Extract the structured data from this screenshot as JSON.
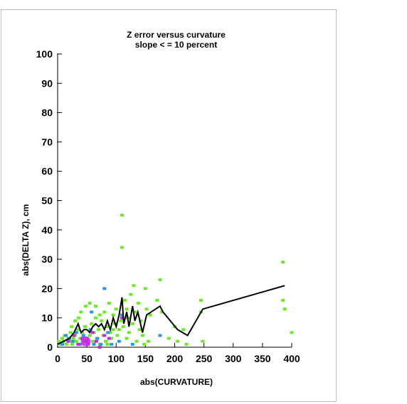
{
  "chart_data": {
    "type": "scatter",
    "title": "Z error versus curvature",
    "subtitle": "slope < = 10 percent",
    "xlabel": "abs(CURVATURE)",
    "ylabel": "abs(DELTA Z), cm",
    "xlim": [
      0,
      400
    ],
    "ylim": [
      0,
      100
    ],
    "x_ticks": [
      0,
      50,
      100,
      150,
      200,
      250,
      300,
      350,
      400
    ],
    "y_ticks": [
      0,
      10,
      20,
      30,
      40,
      50,
      60,
      70,
      80,
      90,
      100
    ],
    "grid": false,
    "point_colors": {
      "low_density": "#66ee22",
      "medium_density": "#2299ee",
      "high_density": "#cc22ee",
      "mean_line": "#000000"
    },
    "series": [
      {
        "name": "",
        "kind": "points",
        "points": [
          [
            2,
            2
          ],
          [
            5,
            1
          ],
          [
            8,
            3
          ],
          [
            10,
            2
          ],
          [
            12,
            4
          ],
          [
            15,
            1
          ],
          [
            18,
            3
          ],
          [
            20,
            2
          ],
          [
            22,
            5
          ],
          [
            25,
            1
          ],
          [
            27,
            3
          ],
          [
            30,
            4
          ],
          [
            32,
            2
          ],
          [
            35,
            6
          ],
          [
            38,
            3
          ],
          [
            40,
            1
          ],
          [
            42,
            5
          ],
          [
            45,
            2
          ],
          [
            47,
            7
          ],
          [
            50,
            3
          ],
          [
            52,
            1
          ],
          [
            55,
            4
          ],
          [
            58,
            8
          ],
          [
            60,
            2
          ],
          [
            62,
            5
          ],
          [
            65,
            10
          ],
          [
            67,
            3
          ],
          [
            70,
            6
          ],
          [
            72,
            1
          ],
          [
            75,
            9
          ],
          [
            78,
            4
          ],
          [
            80,
            12
          ],
          [
            82,
            2
          ],
          [
            85,
            7
          ],
          [
            88,
            15
          ],
          [
            90,
            5
          ],
          [
            92,
            3
          ],
          [
            95,
            11
          ],
          [
            98,
            8
          ],
          [
            100,
            13
          ],
          [
            102,
            4
          ],
          [
            105,
            6
          ],
          [
            108,
            9
          ],
          [
            110,
            45
          ],
          [
            110,
            34
          ],
          [
            112,
            7
          ],
          [
            115,
            16
          ],
          [
            118,
            3
          ],
          [
            120,
            10
          ],
          [
            122,
            5
          ],
          [
            125,
            18
          ],
          [
            128,
            8
          ],
          [
            130,
            21
          ],
          [
            132,
            12
          ],
          [
            135,
            2
          ],
          [
            138,
            15
          ],
          [
            140,
            6
          ],
          [
            142,
            9
          ],
          [
            145,
            4
          ],
          [
            148,
            1
          ],
          [
            150,
            20
          ],
          [
            152,
            13
          ],
          [
            155,
            2
          ],
          [
            158,
            11
          ],
          [
            170,
            16
          ],
          [
            175,
            23
          ],
          [
            178,
            12
          ],
          [
            190,
            3
          ],
          [
            200,
            7
          ],
          [
            205,
            2
          ],
          [
            215,
            6
          ],
          [
            220,
            1
          ],
          [
            245,
            16
          ],
          [
            245,
            12
          ],
          [
            248,
            2
          ],
          [
            385,
            29
          ],
          [
            385,
            16
          ],
          [
            388,
            13
          ],
          [
            400,
            5
          ],
          [
            30,
            9
          ],
          [
            40,
            12
          ],
          [
            55,
            15
          ],
          [
            65,
            14
          ],
          [
            72,
            11
          ],
          [
            85,
            1
          ],
          [
            95,
            6
          ],
          [
            118,
            13
          ],
          [
            24,
            7
          ],
          [
            36,
            10
          ],
          [
            48,
            14
          ]
        ]
      },
      {
        "name": "",
        "kind": "points",
        "points": [
          [
            8,
            1
          ],
          [
            14,
            4
          ],
          [
            20,
            3
          ],
          [
            26,
            2
          ],
          [
            32,
            5
          ],
          [
            38,
            1
          ],
          [
            44,
            4
          ],
          [
            50,
            2
          ],
          [
            56,
            6
          ],
          [
            62,
            1
          ],
          [
            68,
            3
          ],
          [
            74,
            1
          ],
          [
            80,
            20
          ],
          [
            86,
            5
          ],
          [
            92,
            1
          ],
          [
            105,
            2
          ],
          [
            110,
            11
          ],
          [
            128,
            1
          ],
          [
            175,
            4
          ],
          [
            58,
            12
          ]
        ]
      },
      {
        "name": "",
        "kind": "points",
        "points": [
          [
            18,
            2
          ],
          [
            28,
            4
          ],
          [
            35,
            1
          ],
          [
            42,
            3
          ],
          [
            48,
            2
          ],
          [
            52,
            1
          ],
          [
            60,
            5
          ],
          [
            66,
            2
          ],
          [
            80,
            4
          ],
          [
            88,
            3
          ],
          [
            110,
            10
          ],
          [
            72,
            0
          ]
        ]
      },
      {
        "name": "",
        "kind": "line",
        "points": [
          [
            0,
            1
          ],
          [
            10,
            2
          ],
          [
            20,
            3
          ],
          [
            28,
            5
          ],
          [
            35,
            8
          ],
          [
            40,
            5
          ],
          [
            45,
            6
          ],
          [
            50,
            6
          ],
          [
            55,
            5
          ],
          [
            60,
            7
          ],
          [
            65,
            8
          ],
          [
            70,
            7
          ],
          [
            75,
            8
          ],
          [
            80,
            6
          ],
          [
            85,
            9
          ],
          [
            90,
            6
          ],
          [
            95,
            10
          ],
          [
            100,
            7
          ],
          [
            105,
            11
          ],
          [
            110,
            17
          ],
          [
            113,
            8
          ],
          [
            118,
            12
          ],
          [
            122,
            7
          ],
          [
            128,
            14
          ],
          [
            132,
            9
          ],
          [
            137,
            12
          ],
          [
            145,
            5
          ],
          [
            152,
            11
          ],
          [
            175,
            14
          ],
          [
            180,
            12
          ],
          [
            205,
            6
          ],
          [
            222,
            4
          ],
          [
            248,
            13
          ],
          [
            388,
            21
          ]
        ]
      }
    ],
    "legend": "none"
  }
}
